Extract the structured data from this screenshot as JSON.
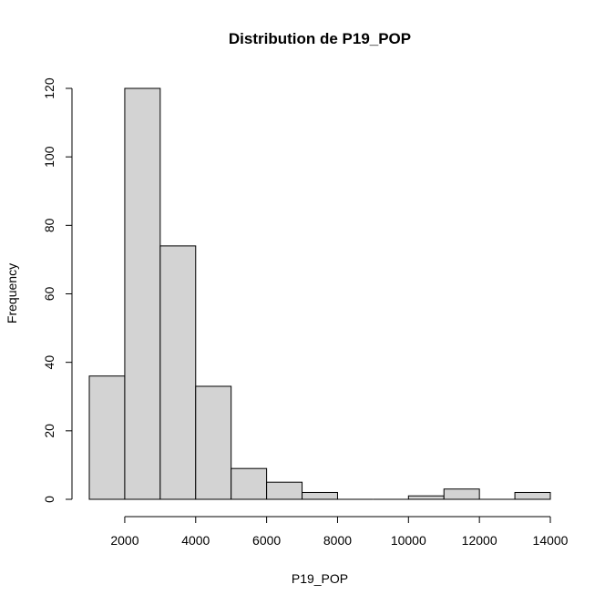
{
  "chart_data": {
    "type": "bar",
    "title": "Distribution de P19_POP",
    "xlabel": "P19_POP",
    "ylabel": "Frequency",
    "bins": [
      {
        "from": 1000,
        "to": 2000,
        "count": 36
      },
      {
        "from": 2000,
        "to": 3000,
        "count": 120
      },
      {
        "from": 3000,
        "to": 4000,
        "count": 74
      },
      {
        "from": 4000,
        "to": 5000,
        "count": 33
      },
      {
        "from": 5000,
        "to": 6000,
        "count": 9
      },
      {
        "from": 6000,
        "to": 7000,
        "count": 5
      },
      {
        "from": 7000,
        "to": 8000,
        "count": 2
      },
      {
        "from": 8000,
        "to": 9000,
        "count": 0
      },
      {
        "from": 9000,
        "to": 10000,
        "count": 0
      },
      {
        "from": 10000,
        "to": 11000,
        "count": 1
      },
      {
        "from": 11000,
        "to": 12000,
        "count": 3
      },
      {
        "from": 12000,
        "to": 13000,
        "count": 0
      },
      {
        "from": 13000,
        "to": 14000,
        "count": 2
      }
    ],
    "xticks": [
      2000,
      4000,
      6000,
      8000,
      10000,
      12000,
      14000
    ],
    "yticks": [
      0,
      20,
      40,
      60,
      80,
      100,
      120
    ],
    "xlim": [
      1000,
      14000
    ],
    "ylim": [
      0,
      120
    ],
    "grid": false,
    "bar_color": "#d3d3d3",
    "edge_color": "#000000"
  }
}
